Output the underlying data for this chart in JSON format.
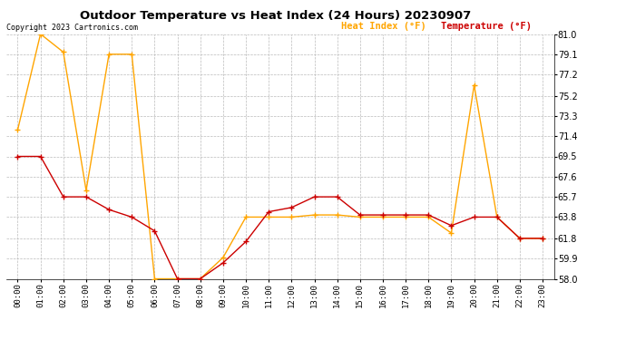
{
  "title": "Outdoor Temperature vs Heat Index (24 Hours) 20230907",
  "copyright": "Copyright 2023 Cartronics.com",
  "hours": [
    "00:00",
    "01:00",
    "02:00",
    "03:00",
    "04:00",
    "05:00",
    "06:00",
    "07:00",
    "08:00",
    "09:00",
    "10:00",
    "11:00",
    "12:00",
    "13:00",
    "14:00",
    "15:00",
    "16:00",
    "17:00",
    "18:00",
    "19:00",
    "20:00",
    "21:00",
    "22:00",
    "23:00"
  ],
  "heat_index": [
    72.0,
    81.0,
    79.3,
    66.3,
    79.1,
    79.1,
    58.0,
    58.0,
    58.0,
    60.0,
    63.8,
    63.8,
    63.8,
    64.0,
    64.0,
    63.8,
    63.8,
    63.8,
    63.8,
    62.3,
    76.2,
    63.8,
    61.8,
    61.8
  ],
  "temperature": [
    69.5,
    69.5,
    65.7,
    65.7,
    64.5,
    63.8,
    62.5,
    58.0,
    58.0,
    59.5,
    61.5,
    64.3,
    64.7,
    65.7,
    65.7,
    64.0,
    64.0,
    64.0,
    64.0,
    63.0,
    63.8,
    63.8,
    61.8,
    61.8
  ],
  "ylim_min": 58.0,
  "ylim_max": 81.0,
  "yticks": [
    58.0,
    59.9,
    61.8,
    63.8,
    65.7,
    67.6,
    69.5,
    71.4,
    73.3,
    75.2,
    77.2,
    79.1,
    81.0
  ],
  "heat_color": "#FFA500",
  "temp_color": "#CC0000",
  "bg_color": "#FFFFFF",
  "grid_color": "#BBBBBB",
  "title_color": "#000000",
  "copyright_color": "#000000"
}
